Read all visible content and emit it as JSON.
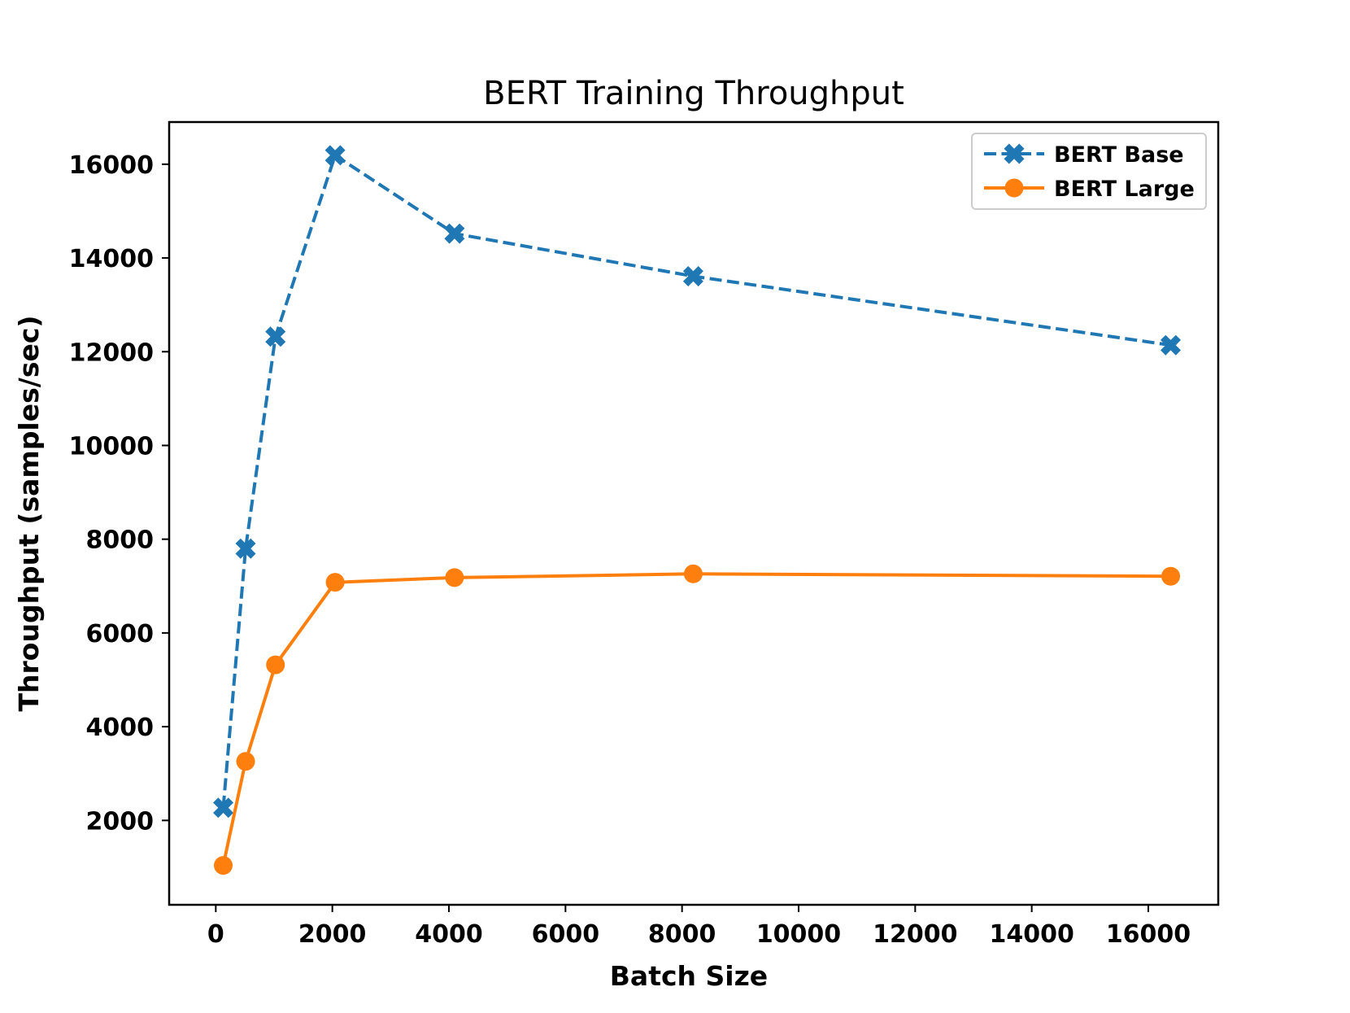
{
  "chart_data": {
    "type": "line",
    "title": "BERT Training Throughput",
    "xlabel": "Batch Size",
    "ylabel": "Throughput (samples/sec)",
    "xlim": [
      -800,
      17200
    ],
    "ylim": [
      200,
      16900
    ],
    "xticks": [
      0,
      2000,
      4000,
      6000,
      8000,
      10000,
      12000,
      14000,
      16000
    ],
    "yticks": [
      2000,
      4000,
      6000,
      8000,
      10000,
      12000,
      14000,
      16000
    ],
    "grid": false,
    "legend_position": "top-right",
    "series": [
      {
        "name": "BERT Base",
        "color": "#1f77b4",
        "line_style": "dashed",
        "marker": "x-filled",
        "x": [
          128,
          512,
          1024,
          2048,
          4096,
          8192,
          16384
        ],
        "y": [
          2270,
          7800,
          12320,
          16190,
          14520,
          13610,
          12140
        ]
      },
      {
        "name": "BERT Large",
        "color": "#ff7f0e",
        "line_style": "solid",
        "marker": "circle",
        "x": [
          128,
          512,
          1024,
          2048,
          4096,
          8192,
          16384
        ],
        "y": [
          1040,
          3260,
          5320,
          7080,
          7180,
          7260,
          7210
        ]
      }
    ]
  }
}
